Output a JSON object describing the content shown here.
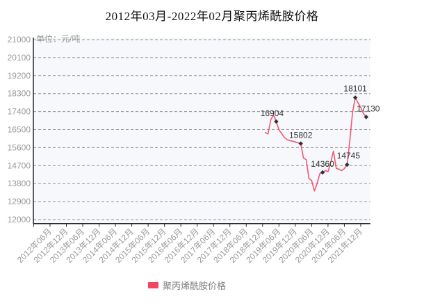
{
  "title": "2012年03月-2022年02月聚丙烯酰胺价格",
  "unit_label": "单位：元/吨",
  "legend": [
    {
      "label": "聚丙烯酰胺价格",
      "color": "#f3455f"
    }
  ],
  "colors": {
    "line": "#f3455f",
    "plot_bg": "#f7f8fc",
    "grid": "#8f8f8f",
    "axis": "#24242e",
    "tick_text": "#999999",
    "marker": "#2f2f2f",
    "point_label_text": "#333333",
    "title_text": "#111111",
    "legend_text": "#7f7f7f"
  },
  "chart_data": {
    "type": "line",
    "title": "2012年03月-2022年02月聚丙烯酰胺价格",
    "ylabel": "单位：元/吨",
    "xlabel": "",
    "ylim": [
      12000,
      21000
    ],
    "ytick_interval": 900,
    "yticks": [
      21000,
      20100,
      19200,
      18300,
      17400,
      16500,
      15600,
      14700,
      13800,
      12900,
      12000
    ],
    "xticks": [
      "2012年06月",
      "2012年12月",
      "2013年06月",
      "2013年12月",
      "2014年06月",
      "2014年12月",
      "2015年06月",
      "2015年12月",
      "2016年06月",
      "2016年12月",
      "2017年06月",
      "2017年12月",
      "2018年06月",
      "2018年12月",
      "2019年06月",
      "2019年12月",
      "2020年06月",
      "2020年12月",
      "2021年06月",
      "2021年12月"
    ],
    "x_range": [
      "2012年03月",
      "2022年02月"
    ],
    "grid": true,
    "grid_style": "dashed",
    "legend_position": "bottom",
    "series": [
      {
        "name": "聚丙烯酰胺价格",
        "color": "#f3455f",
        "x": [
          "2019年01月",
          "2019年02月",
          "2019年03月",
          "2019年04月",
          "2019年05月",
          "2019年06月",
          "2019年07月",
          "2019年08月",
          "2019年09月",
          "2019年10月",
          "2019年11月",
          "2019年12月",
          "2020年01月",
          "2020年02月",
          "2020年03月",
          "2020年04月",
          "2020年05月",
          "2020年06月",
          "2020年07月",
          "2020年08月",
          "2020年09月",
          "2020年10月",
          "2020年11月",
          "2020年12月",
          "2021年01月",
          "2021年02月",
          "2021年03月",
          "2021年04月",
          "2021年05月",
          "2021年06月",
          "2021年07月",
          "2021年08月",
          "2021年09月",
          "2021年10月",
          "2021年11月",
          "2021年12月",
          "2022年01月",
          "2022年02月"
        ],
        "values": [
          16350,
          16280,
          17000,
          17230,
          16904,
          16500,
          16300,
          16100,
          16000,
          15950,
          15920,
          15880,
          15840,
          15802,
          15080,
          15000,
          14050,
          13950,
          13430,
          13800,
          14300,
          14360,
          14450,
          14400,
          14850,
          15420,
          14570,
          14520,
          14450,
          14550,
          14745,
          15950,
          17350,
          18101,
          17850,
          17600,
          17300,
          17130
        ],
        "labeled_points": [
          {
            "x": "2019年05月",
            "value": 16904
          },
          {
            "x": "2020年02月",
            "value": 15802
          },
          {
            "x": "2020年10月",
            "value": 14360
          },
          {
            "x": "2021年07月",
            "value": 14745
          },
          {
            "x": "2021年10月",
            "value": 18101
          },
          {
            "x": "2022年02月",
            "value": 17130
          }
        ]
      }
    ]
  }
}
